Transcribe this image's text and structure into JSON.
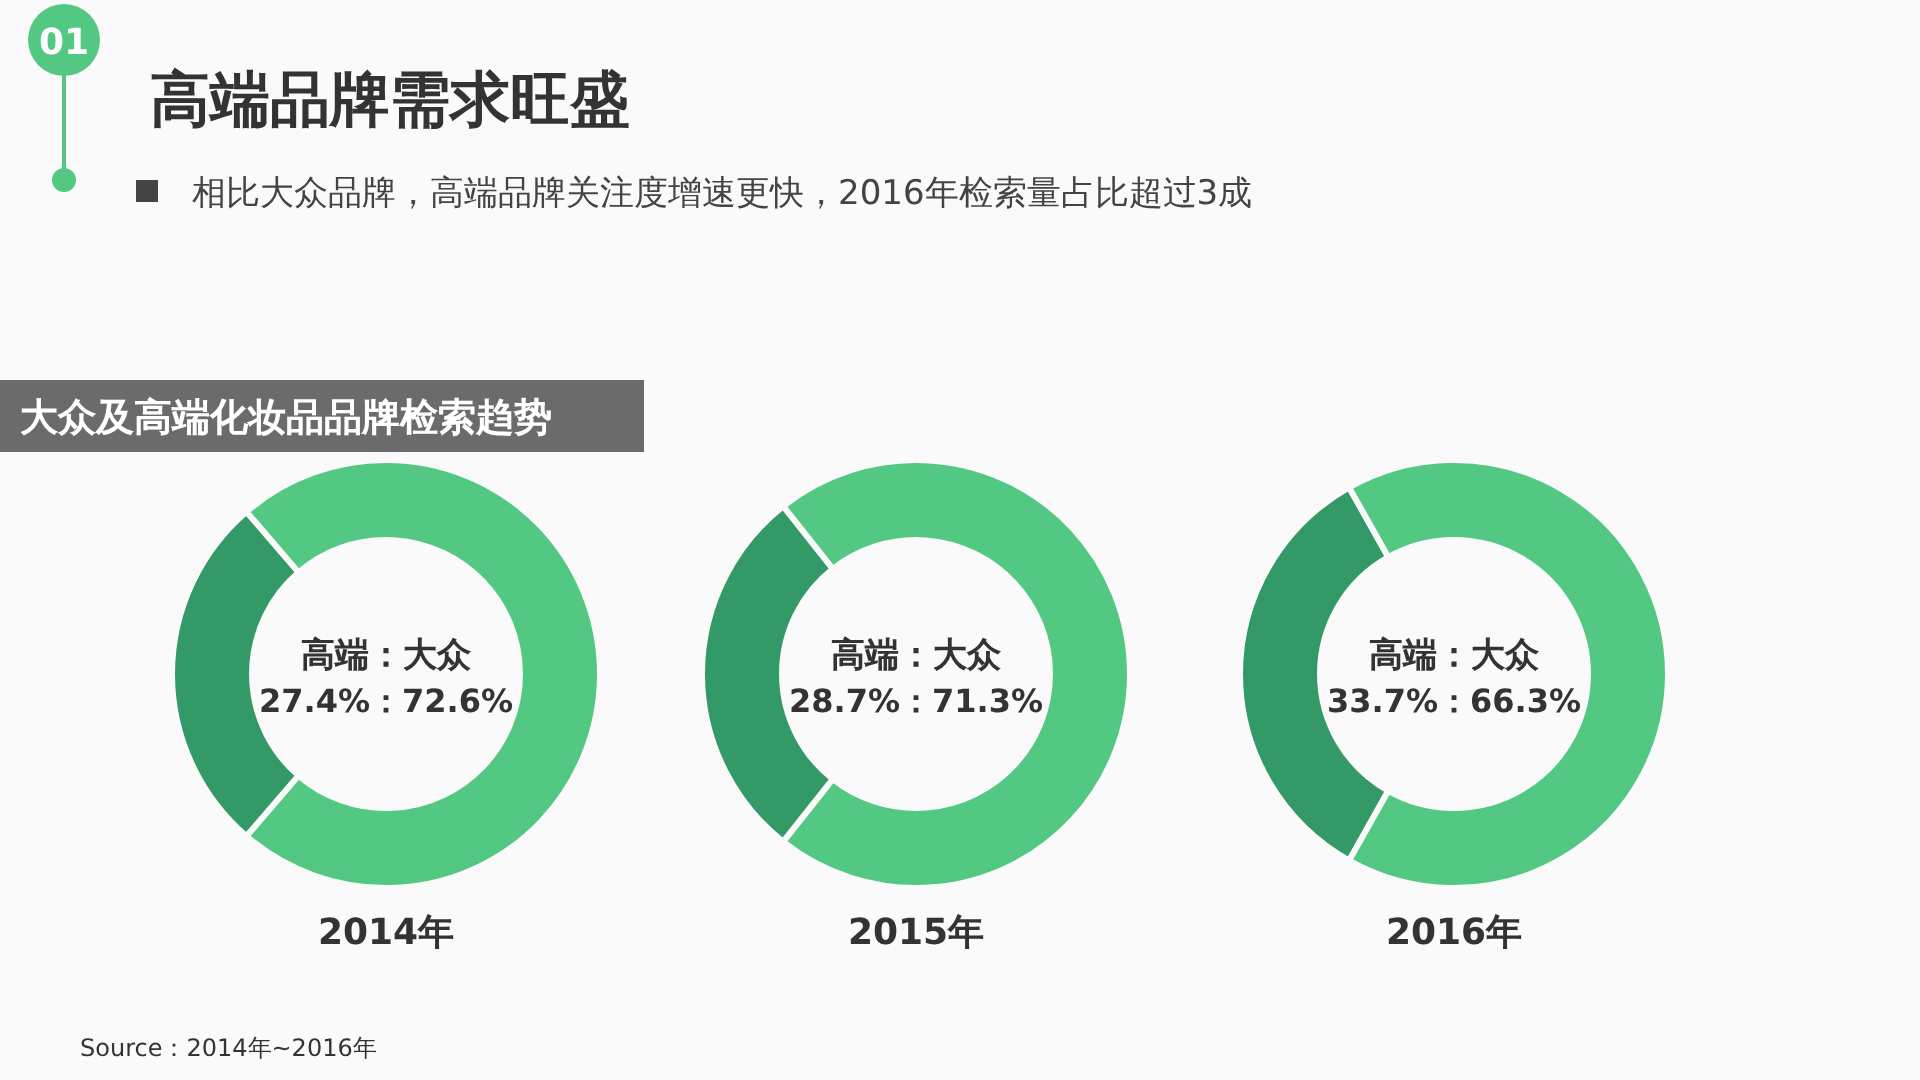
{
  "chart_data": [
    {
      "type": "other",
      "title": "高端品牌需求旺盛",
      "subtitle": "相比大众品牌，高端品牌关注度增速更快，2016年检索量占比超过3成",
      "annotations": [
        "01",
        "大众及高端化妆品品牌检索趋势",
        "Source：2014年~2016年"
      ]
    },
    {
      "type": "donut",
      "title": "2014年",
      "categories": [
        "高端",
        "大众"
      ],
      "values": [
        27.4,
        72.6
      ],
      "value_labels": [
        "27.4%",
        "72.6%"
      ],
      "colors": [
        "#339966",
        "#52c882"
      ],
      "annotations": [
        "：",
        "："
      ]
    },
    {
      "type": "donut",
      "title": "2015年",
      "categories": [
        "高端",
        "大众"
      ],
      "values": [
        28.7,
        71.3
      ],
      "value_labels": [
        "28.7%",
        "71.3%"
      ],
      "colors": [
        "#339966",
        "#52c882"
      ],
      "annotations": [
        "：",
        "："
      ]
    },
    {
      "type": "donut",
      "title": "2016年",
      "categories": [
        "高端",
        "大众"
      ],
      "values": [
        33.7,
        66.3
      ],
      "value_labels": [
        "33.7%",
        "66.3%"
      ],
      "colors": [
        "#339966",
        "#52c882"
      ],
      "annotations": [
        "：",
        "："
      ]
    }
  ]
}
